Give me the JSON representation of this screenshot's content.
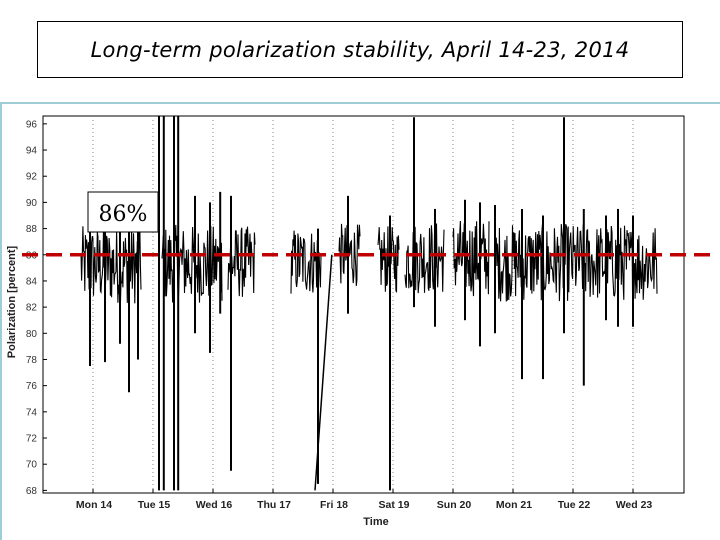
{
  "title": "Long-term polarization stability, April 14-23, 2014",
  "chart_data": {
    "type": "line",
    "title": "Long-term polarization stability, April 14-23, 2014",
    "xlabel": "Time",
    "ylabel": "Polarization [percent]",
    "ylim": [
      68,
      97
    ],
    "yticks": [
      "96",
      "94",
      "92",
      "90",
      "88",
      "86",
      "84",
      "82",
      "80",
      "78",
      "76",
      "74",
      "72",
      "70",
      "68"
    ],
    "xticks": [
      "Mon 14",
      "Tue 15",
      "Wed 16",
      "Thu 17",
      "Fri 18",
      "Sat 19",
      "Sun 20",
      "Mon 21",
      "Tue 22",
      "Wed 23"
    ],
    "grid": "vertical dotted",
    "reference_line": {
      "value": 86,
      "label": "86%",
      "color": "#c00000",
      "style": "dashed"
    },
    "series": [
      {
        "color": "#000000",
        "segments": [
          {
            "x": [
              -0.6,
              0.4
            ],
            "mean": 85.2,
            "spread": 3.0
          },
          {
            "x": [
              0.75,
              1.75
            ],
            "mean": 85.3,
            "spread": 3.0
          },
          {
            "x": [
              1.85,
              2.3
            ],
            "mean": 85.4,
            "spread": 2.8
          },
          {
            "x": [
              2.9,
              3.4
            ],
            "mean": 85.5,
            "spread": 2.6
          },
          {
            "x": [
              3.7,
              4.05
            ],
            "mean": 86.0,
            "spread": 2.4
          },
          {
            "x": [
              4.35,
              4.7
            ],
            "mean": 85.6,
            "spread": 2.6
          },
          {
            "x": [
              4.8,
              5.45
            ],
            "mean": 85.8,
            "spread": 2.8
          },
          {
            "x": [
              5.6,
              6.2
            ],
            "mean": 85.8,
            "spread": 3.0
          },
          {
            "x": [
              6.3,
              9.0
            ],
            "mean": 85.4,
            "spread": 3.0
          }
        ],
        "spikes": [
          {
            "x": -0.45,
            "low": 77.5,
            "high": 90.8
          },
          {
            "x": -0.2,
            "low": 77.8,
            "high": 89.8
          },
          {
            "x": 0.05,
            "low": 79.2,
            "high": 90.2
          },
          {
            "x": 0.2,
            "low": 75.5,
            "high": 89.5
          },
          {
            "x": 0.35,
            "low": 78.0,
            "high": 89.0
          },
          {
            "x": 0.7,
            "low": 68.0,
            "high": 97.0
          },
          {
            "x": 0.78,
            "low": 68.0,
            "high": 97.0
          },
          {
            "x": 0.95,
            "low": 68.0,
            "high": 97.0
          },
          {
            "x": 1.02,
            "low": 68.0,
            "high": 97.0
          },
          {
            "x": 1.3,
            "low": 80.0,
            "high": 90.5
          },
          {
            "x": 1.55,
            "low": 78.5,
            "high": 90.0
          },
          {
            "x": 1.72,
            "low": 81.5,
            "high": 90.8
          },
          {
            "x": 1.9,
            "low": 69.5,
            "high": 90.5
          },
          {
            "x": 3.35,
            "low": 68.5,
            "high": 88.0
          },
          {
            "x": 3.85,
            "low": 81.5,
            "high": 90.5
          },
          {
            "x": 4.55,
            "low": 68.0,
            "high": 89.0
          },
          {
            "x": 4.95,
            "low": 82.0,
            "high": 96.5
          },
          {
            "x": 5.3,
            "low": 80.5,
            "high": 89.5
          },
          {
            "x": 5.8,
            "low": 81.0,
            "high": 90.2
          },
          {
            "x": 6.05,
            "low": 79.0,
            "high": 90.0
          },
          {
            "x": 6.3,
            "low": 80.0,
            "high": 89.8
          },
          {
            "x": 6.75,
            "low": 76.5,
            "high": 89.5
          },
          {
            "x": 7.1,
            "low": 76.5,
            "high": 89.0
          },
          {
            "x": 7.45,
            "low": 80.0,
            "high": 96.5
          },
          {
            "x": 7.78,
            "low": 76.0,
            "high": 89.5
          },
          {
            "x": 8.15,
            "low": 81.0,
            "high": 89.0
          },
          {
            "x": 8.35,
            "low": 80.5,
            "high": 89.5
          },
          {
            "x": 8.6,
            "low": 80.5,
            "high": 89.0
          }
        ],
        "ramp": {
          "x": [
            3.3,
            3.58
          ],
          "y": [
            68,
            86
          ]
        }
      }
    ]
  }
}
